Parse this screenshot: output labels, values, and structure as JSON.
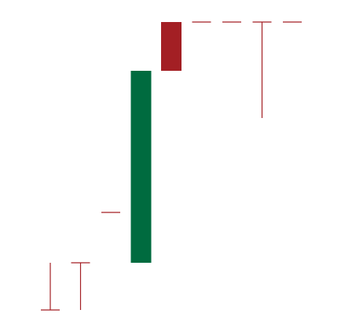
{
  "chart_data": {
    "type": "candlestick",
    "categories": [
      null,
      null,
      null,
      null,
      null,
      null,
      null,
      null,
      null
    ],
    "open": [
      4,
      19,
      35,
      19,
      95.5,
      95.5,
      95.5,
      95.5,
      95.5
    ],
    "high": [
      19,
      19,
      35,
      80,
      95.5,
      95.5,
      95.5,
      95.5,
      95.5
    ],
    "low": [
      4,
      4,
      35,
      19,
      80,
      95.5,
      95.5,
      65,
      95.5
    ],
    "close": [
      4,
      19,
      35,
      80,
      80,
      95.5,
      95.5,
      95.5,
      95.5
    ],
    "up_color": "#006b3f",
    "down_color": "#a31f24",
    "ylim": [
      0,
      100
    ],
    "grid": false
  }
}
